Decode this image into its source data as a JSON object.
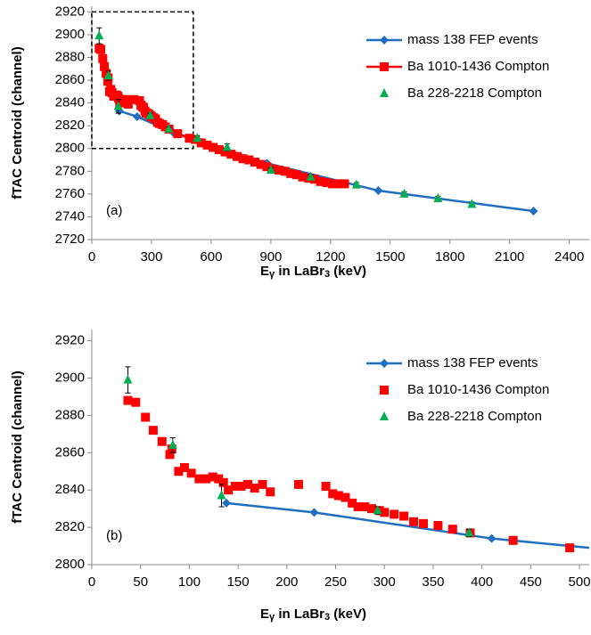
{
  "chart_data": [
    {
      "type": "scatter",
      "panel_label": "(a)",
      "y_label": "fTAC Centroid (channel)",
      "x_label": [
        "E",
        "γ",
        " in LaBr",
        "3",
        " (keV)"
      ],
      "xlim": [
        0,
        2500
      ],
      "xticks": [
        0,
        300,
        600,
        900,
        1200,
        1500,
        1800,
        2100,
        2400
      ],
      "ylim": [
        2720,
        2925
      ],
      "yticks": [
        2720,
        2740,
        2760,
        2780,
        2800,
        2820,
        2840,
        2860,
        2880,
        2900,
        2920
      ],
      "legend": "upper right",
      "highlight_box": {
        "xlim": [
          0,
          510
        ],
        "ylim": [
          2800,
          2920
        ]
      },
      "series": [
        {
          "name": "mass 138 FEP events",
          "color": "#1f6fbf",
          "marker": "diamond",
          "line": true,
          "x": [
            138,
            228,
            410,
            530,
            880,
            1440,
            2220
          ],
          "values": [
            2833,
            2828,
            2814,
            2808,
            2787,
            2763,
            2745
          ]
        },
        {
          "name": "Ba 1010-1436 Compton",
          "color": "#ff0000",
          "marker": "square",
          "line": true,
          "x": [
            37,
            45,
            55,
            63,
            72,
            80,
            82,
            89,
            95,
            102,
            110,
            117,
            124,
            130,
            135,
            140,
            147,
            153,
            160,
            167,
            175,
            183,
            212,
            240,
            247,
            253,
            260,
            267,
            273,
            280,
            287,
            295,
            300,
            310,
            320,
            330,
            340,
            355,
            370,
            388,
            432,
            490,
            520,
            550,
            580,
            610,
            640,
            670,
            700,
            730,
            760,
            790,
            820,
            850,
            880,
            910,
            940,
            970,
            1000,
            1030,
            1060,
            1090,
            1120,
            1150,
            1180,
            1210,
            1240,
            1270
          ],
          "values": [
            2888,
            2887,
            2879,
            2872,
            2866,
            2859,
            2862,
            2850,
            2852,
            2849,
            2846,
            2846,
            2847,
            2846,
            2844,
            2840,
            2842,
            2842,
            2843,
            2841,
            2843,
            2839,
            2843,
            2842,
            2838,
            2837,
            2836,
            2833,
            2831,
            2831,
            2830,
            2829,
            2828,
            2827,
            2826,
            2823,
            2822,
            2821,
            2819,
            2817,
            2813,
            2809,
            2808,
            2805,
            2803,
            2801,
            2799,
            2797,
            2795,
            2793,
            2791,
            2790,
            2788,
            2786,
            2784,
            2782,
            2781,
            2780,
            2778,
            2777,
            2775,
            2774,
            2773,
            2771,
            2770,
            2769,
            2769,
            2769
          ]
        },
        {
          "name": "Ba 228-2218 Compton",
          "color": "#00b050",
          "marker": "triangle",
          "line": false,
          "x": [
            37,
            83,
            133,
            293,
            387,
            530,
            680,
            900,
            1100,
            1330,
            1570,
            1740,
            1910
          ],
          "values": [
            2899,
            2864,
            2837,
            2829,
            2817,
            2809,
            2801,
            2781,
            2775,
            2768,
            2760,
            2756,
            2751
          ],
          "errors": [
            7,
            4,
            6,
            2,
            2,
            2,
            3,
            2,
            2,
            2,
            2,
            2,
            2
          ]
        }
      ]
    },
    {
      "type": "scatter",
      "panel_label": "(b)",
      "y_label": "fTAC Centroid (channel)",
      "x_label": [
        "E",
        "γ",
        " in LaBr",
        "3",
        " (keV)"
      ],
      "xlim": [
        0,
        510
      ],
      "xticks": [
        0,
        50,
        100,
        150,
        200,
        250,
        300,
        350,
        400,
        450,
        500
      ],
      "ylim": [
        2800,
        2926
      ],
      "yticks": [
        2800,
        2820,
        2840,
        2860,
        2880,
        2900,
        2920
      ],
      "legend": "upper right",
      "series": [
        {
          "name": "mass 138 FEP events",
          "color": "#1f6fbf",
          "marker": "diamond",
          "line": true,
          "x": [
            138,
            228,
            410,
            530
          ],
          "values": [
            2833,
            2828,
            2814,
            2808
          ]
        },
        {
          "name": "Ba 1010-1436 Compton",
          "color": "#ff0000",
          "marker": "square",
          "line": false,
          "x": [
            37,
            45,
            55,
            63,
            72,
            80,
            82,
            89,
            95,
            102,
            110,
            117,
            124,
            130,
            135,
            140,
            147,
            153,
            160,
            167,
            175,
            183,
            212,
            240,
            247,
            253,
            260,
            267,
            273,
            280,
            287,
            295,
            300,
            310,
            320,
            330,
            340,
            355,
            370,
            388,
            432,
            490
          ],
          "values": [
            2888,
            2887,
            2879,
            2872,
            2866,
            2859,
            2862,
            2850,
            2852,
            2849,
            2846,
            2846,
            2847,
            2846,
            2844,
            2840,
            2842,
            2842,
            2843,
            2841,
            2843,
            2839,
            2843,
            2842,
            2838,
            2837,
            2836,
            2833,
            2831,
            2831,
            2830,
            2829,
            2828,
            2827,
            2826,
            2823,
            2822,
            2821,
            2819,
            2817,
            2813,
            2809
          ]
        },
        {
          "name": "Ba 228-2218 Compton",
          "color": "#00b050",
          "marker": "triangle",
          "line": false,
          "x": [
            37,
            83,
            133,
            293,
            387
          ],
          "values": [
            2899,
            2864,
            2837,
            2829,
            2817
          ],
          "errors": [
            7,
            4,
            6,
            2,
            2
          ]
        }
      ]
    }
  ]
}
